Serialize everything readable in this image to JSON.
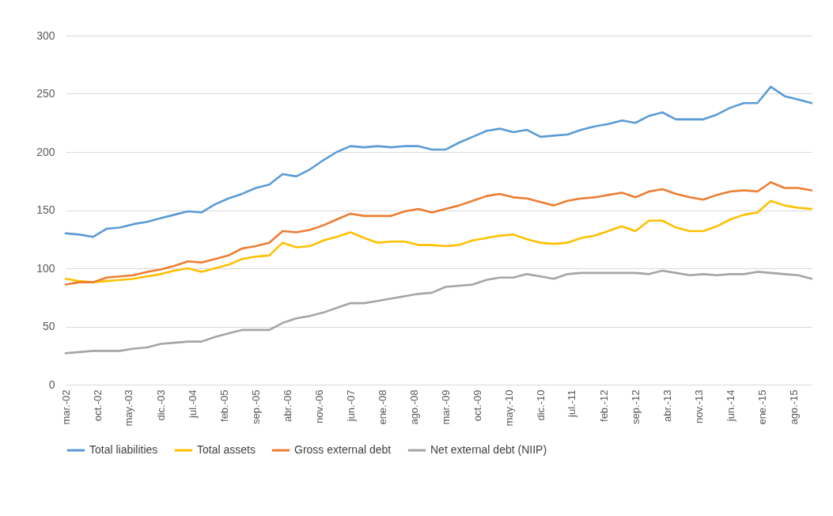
{
  "chart_data": {
    "type": "line",
    "legend": "bottom",
    "grid": "y",
    "marker": "none",
    "line_style": "solid",
    "x": [
      "2002-03",
      "2002-06",
      "2002-09",
      "2002-12",
      "2003-03",
      "2003-06",
      "2003-09",
      "2003-12",
      "2004-03",
      "2004-06",
      "2004-09",
      "2004-12",
      "2005-03",
      "2005-06",
      "2005-09",
      "2005-12",
      "2006-03",
      "2006-06",
      "2006-09",
      "2006-12",
      "2007-03",
      "2007-06",
      "2007-09",
      "2007-12",
      "2008-03",
      "2008-06",
      "2008-09",
      "2008-12",
      "2009-03",
      "2009-06",
      "2009-09",
      "2009-12",
      "2010-03",
      "2010-06",
      "2010-09",
      "2010-12",
      "2011-03",
      "2011-06",
      "2011-09",
      "2011-12",
      "2012-03",
      "2012-06",
      "2012-09",
      "2012-12",
      "2013-03",
      "2013-06",
      "2013-09",
      "2013-12",
      "2014-03",
      "2014-06",
      "2014-09",
      "2014-12",
      "2015-03",
      "2015-06",
      "2015-09",
      "2015-12"
    ],
    "xlim": [
      "2002-03",
      "2015-12"
    ],
    "xticks": [
      {
        "value": "2002-03",
        "label": "mar.-02"
      },
      {
        "value": "2002-10",
        "label": "oct.-02"
      },
      {
        "value": "2003-05",
        "label": "may.-03"
      },
      {
        "value": "2003-12",
        "label": "dic.-03"
      },
      {
        "value": "2004-07",
        "label": "jul.-04"
      },
      {
        "value": "2005-02",
        "label": "feb.-05"
      },
      {
        "value": "2005-09",
        "label": "sep.-05"
      },
      {
        "value": "2006-04",
        "label": "abr.-06"
      },
      {
        "value": "2006-11",
        "label": "nov.-06"
      },
      {
        "value": "2007-06",
        "label": "jun.-07"
      },
      {
        "value": "2008-01",
        "label": "ene.-08"
      },
      {
        "value": "2008-08",
        "label": "ago.-08"
      },
      {
        "value": "2009-03",
        "label": "mar.-09"
      },
      {
        "value": "2009-10",
        "label": "oct.-09"
      },
      {
        "value": "2010-05",
        "label": "may.-10"
      },
      {
        "value": "2010-12",
        "label": "dic.-10"
      },
      {
        "value": "2011-07",
        "label": "jul.-11"
      },
      {
        "value": "2012-02",
        "label": "feb.-12"
      },
      {
        "value": "2012-09",
        "label": "sep.-12"
      },
      {
        "value": "2013-04",
        "label": "abr.-13"
      },
      {
        "value": "2013-11",
        "label": "nov.-13"
      },
      {
        "value": "2014-06",
        "label": "jun.-14"
      },
      {
        "value": "2015-01",
        "label": "ene.-15"
      },
      {
        "value": "2015-08",
        "label": "ago.-15"
      }
    ],
    "ylim": [
      0,
      300
    ],
    "yticks": [
      0,
      50,
      100,
      150,
      200,
      250,
      300
    ],
    "series": [
      {
        "name": "Total liabilities",
        "color": "#5b9bd5",
        "values": [
          130,
          129,
          127,
          134,
          135,
          138,
          140,
          143,
          146,
          149,
          148,
          155,
          160,
          164,
          169,
          172,
          181,
          179,
          185,
          193,
          200,
          205,
          204,
          205,
          204,
          205,
          205,
          202,
          202,
          208,
          213,
          218,
          220,
          217,
          219,
          213,
          214,
          215,
          219,
          222,
          224,
          227,
          225,
          231,
          234,
          228,
          228,
          228,
          232,
          238,
          242,
          242,
          256,
          248,
          245,
          242
        ]
      },
      {
        "name": "Total assets",
        "color": "#ffc000",
        "values": [
          91,
          89,
          88,
          89,
          90,
          91,
          93,
          95,
          98,
          100,
          97,
          100,
          103,
          108,
          110,
          111,
          122,
          118,
          119,
          124,
          127,
          131,
          126,
          122,
          123,
          123,
          120,
          120,
          119,
          120,
          124,
          126,
          128,
          129,
          125,
          122,
          121,
          122,
          126,
          128,
          132,
          136,
          132,
          141,
          141,
          135,
          132,
          132,
          136,
          142,
          146,
          148,
          158,
          154,
          152,
          151
        ]
      },
      {
        "name": "Gross external debt",
        "color": "#ed7d31",
        "values": [
          86,
          88,
          88,
          92,
          93,
          94,
          97,
          99,
          102,
          106,
          105,
          108,
          111,
          117,
          119,
          122,
          132,
          131,
          133,
          137,
          142,
          147,
          145,
          145,
          145,
          149,
          151,
          148,
          151,
          154,
          158,
          162,
          164,
          161,
          160,
          157,
          154,
          158,
          160,
          161,
          163,
          165,
          161,
          166,
          168,
          164,
          161,
          159,
          163,
          166,
          167,
          166,
          174,
          169,
          169,
          167
        ]
      },
      {
        "name": "Net external debt (NIIP)",
        "color": "#a5a5a5",
        "values": [
          27,
          28,
          29,
          29,
          29,
          31,
          32,
          35,
          36,
          37,
          37,
          41,
          44,
          47,
          47,
          47,
          53,
          57,
          59,
          62,
          66,
          70,
          70,
          72,
          74,
          76,
          78,
          79,
          84,
          85,
          86,
          90,
          92,
          92,
          95,
          93,
          91,
          95,
          96,
          96,
          96,
          96,
          96,
          95,
          98,
          96,
          94,
          95,
          94,
          95,
          95,
          97,
          96,
          95,
          94,
          91
        ]
      }
    ]
  }
}
